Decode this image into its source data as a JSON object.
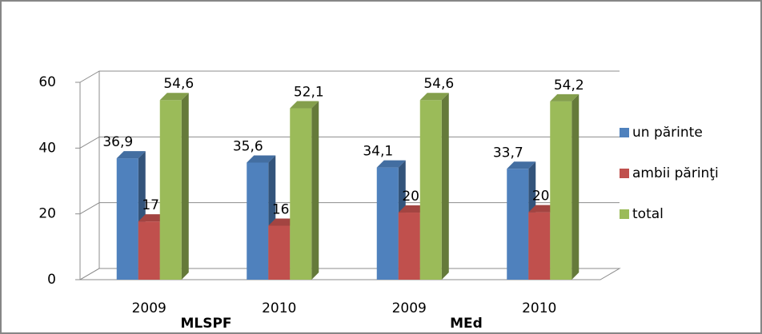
{
  "chart_data": {
    "type": "bar",
    "categories": [
      "2009",
      "2010",
      "2009",
      "2010"
    ],
    "groups": [
      "MLSPF",
      "MEd"
    ],
    "series": [
      {
        "name": "un părinte",
        "color": "#4f81bd",
        "values": [
          36.9,
          35.6,
          34.1,
          33.7
        ],
        "value_labels": [
          "36,9",
          "35,6",
          "34,1",
          "33,7"
        ]
      },
      {
        "name": "ambii părinţi",
        "color": "#c0504d",
        "values": [
          17.7,
          16.4,
          20.4,
          20.5
        ],
        "value_labels": [
          "17,7",
          "16,4",
          "20,4",
          "20,5"
        ]
      },
      {
        "name": "total",
        "color": "#9bbb59",
        "values": [
          54.6,
          52.1,
          54.6,
          54.2
        ],
        "value_labels": [
          "54,6",
          "52,1",
          "54,6",
          "54,2"
        ]
      }
    ],
    "ylim": [
      0,
      60
    ],
    "yticks": [
      0,
      20,
      40,
      60
    ],
    "grid": true,
    "legend": "right"
  }
}
